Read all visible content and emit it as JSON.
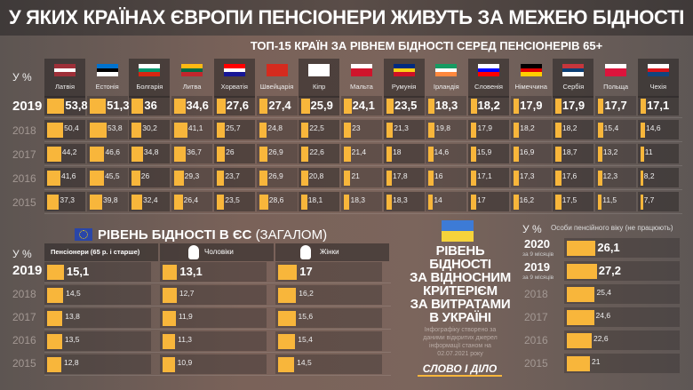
{
  "title": "У ЯКИХ КРАЇНАХ ЄВРОПИ ПЕНСІОНЕРИ ЖИВУТЬ ЗА МЕЖЕЮ БІДНОСТІ",
  "colors": {
    "bar": "#f8b63b"
  },
  "chart_data": [
    {
      "type": "bar",
      "title": "ТОП-15 КРАЇН ЗА РІВНЕМ БІДНОСТІ СЕРЕД ПЕНСІОНЕРІВ 65+",
      "unit": "У %",
      "categories": [
        "Латвія",
        "Естонія",
        "Болгарія",
        "Литва",
        "Хорватія",
        "Швейцарія",
        "Кіпр",
        "Мальта",
        "Румунія",
        "Ірландія",
        "Словенія",
        "Німеччина",
        "Сербія",
        "Польща",
        "Чехія"
      ],
      "flags": [
        [
          "#9e3039",
          "#fff",
          "#9e3039"
        ],
        [
          "#0072ce",
          "#000",
          "#fff"
        ],
        [
          "#fff",
          "#00966e",
          "#d62612"
        ],
        [
          "#fdb913",
          "#006a44",
          "#c1272d"
        ],
        [
          "#ff0000",
          "#fff",
          "#171796"
        ],
        [
          "#d52b1e",
          "#d52b1e",
          "#d52b1e"
        ],
        [
          "#fff",
          "#fff",
          "#fff"
        ],
        [
          "#fff",
          "#cf142b",
          "#cf142b"
        ],
        [
          "#002b7f",
          "#fcd116",
          "#ce1126"
        ],
        [
          "#169b62",
          "#fff",
          "#ff883e"
        ],
        [
          "#fff",
          "#0000ff",
          "#ff0000"
        ],
        [
          "#000",
          "#dd0000",
          "#ffce00"
        ],
        [
          "#c6363c",
          "#0c4076",
          "#fff"
        ],
        [
          "#fff",
          "#dc143c",
          "#dc143c"
        ],
        [
          "#fff",
          "#d7141a",
          "#11457e"
        ]
      ],
      "series": [
        {
          "name": "2019",
          "values": [
            53.8,
            51.3,
            36,
            34.6,
            27.6,
            27.4,
            25.9,
            24.1,
            23.5,
            18.3,
            18.2,
            17.9,
            17.9,
            17.7,
            17.1
          ]
        },
        {
          "name": "2018",
          "values": [
            50.4,
            53.8,
            30.2,
            41.1,
            25.7,
            24.8,
            22.5,
            23,
            21.3,
            19.8,
            17.9,
            18.2,
            18.2,
            15.4,
            14.6
          ]
        },
        {
          "name": "2017",
          "values": [
            44.2,
            46.6,
            34.8,
            36.7,
            26,
            26.9,
            22.6,
            21.4,
            18,
            14.6,
            15.9,
            16.9,
            18.7,
            13.2,
            11
          ]
        },
        {
          "name": "2016",
          "values": [
            41.6,
            45.5,
            26,
            29.3,
            23.7,
            26.9,
            20.8,
            21,
            17.8,
            16,
            17.1,
            17.3,
            17.6,
            12.3,
            8.2
          ]
        },
        {
          "name": "2015",
          "values": [
            37.3,
            39.8,
            32.4,
            26.4,
            23.5,
            28.6,
            18.1,
            18.3,
            18.3,
            14,
            17,
            16.2,
            17.5,
            11.5,
            7.7
          ]
        }
      ]
    },
    {
      "type": "bar",
      "title": "РІВЕНЬ БІДНОСТІ В ЄС",
      "title_suffix": "(ЗАГАЛОМ)",
      "unit": "У %",
      "categories": [
        "2019",
        "2018",
        "2017",
        "2016",
        "2015"
      ],
      "series": [
        {
          "name": "Пенсіонери (65 р. і старше)",
          "values": [
            15.1,
            14.5,
            13.8,
            13.5,
            12.8
          ]
        },
        {
          "name": "Чоловіки",
          "values": [
            13.1,
            12.7,
            11.9,
            11.3,
            10.9
          ]
        },
        {
          "name": "Жінки",
          "values": [
            17,
            16.2,
            15.6,
            15.4,
            14.5
          ]
        }
      ]
    },
    {
      "type": "bar",
      "title": "РІВЕНЬ БІДНОСТІ ЗА ВІДНОСНИМ КРИТЕРІЄМ ЗА ВИТРАТАМИ В УКРАЇНІ",
      "unit": "У %",
      "series_name": "Особи пенсійного віку (не працюють)",
      "categories": [
        "2020",
        "2019",
        "2018",
        "2017",
        "2016",
        "2015"
      ],
      "category_notes": [
        "за 9 місяців",
        "за 9 місяців",
        "",
        "",
        "",
        ""
      ],
      "values": [
        26.1,
        27.2,
        25.4,
        24.6,
        22.6,
        21
      ]
    }
  ],
  "ukraine": {
    "title_lines": [
      "РІВЕНЬ",
      "БІДНОСТІ",
      "ЗА ВІДНОСНИМ",
      "КРИТЕРІЄМ",
      "ЗА ВИТРАТАМИ",
      "В УКРАЇНІ"
    ],
    "note": "Інфографіку створено за даними відкритих джерел інформації станом на 02.07.2021 року",
    "logo": "СЛОВО І ДІЛО"
  }
}
